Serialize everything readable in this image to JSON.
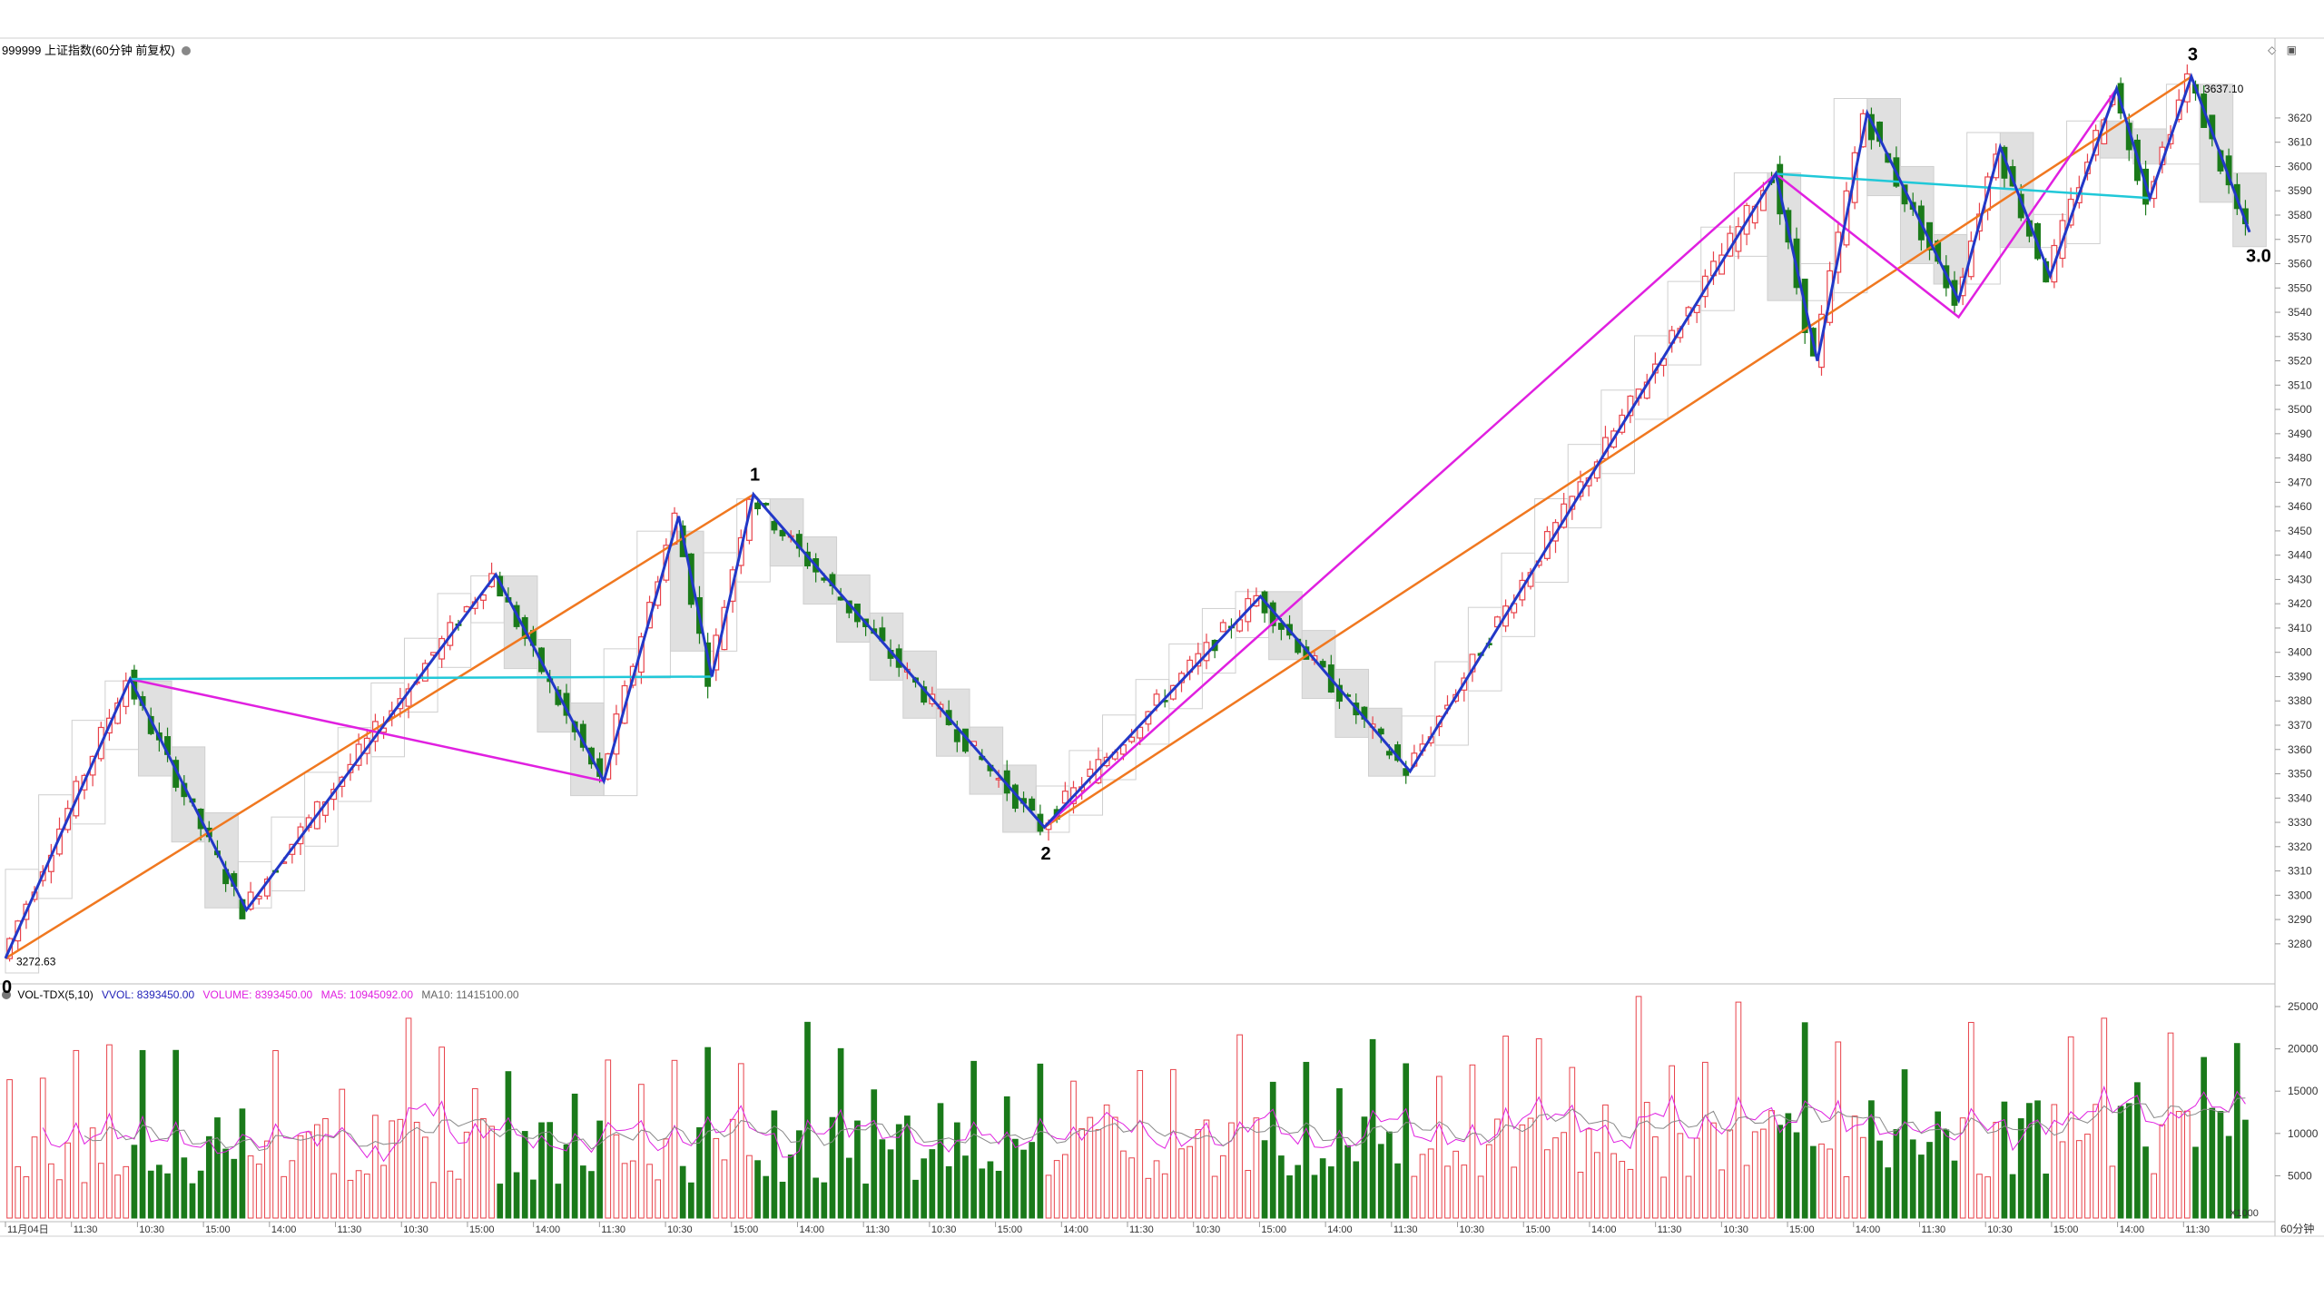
{
  "header": {
    "title": "999999 上证指数(60分钟 前复权)",
    "icons": [
      "diamond-icon",
      "window-icon"
    ]
  },
  "volume_header": {
    "name": "VOL-TDX(5,10)",
    "vvol": "VVOL: 8393450.00",
    "volume": "VOLUME: 8393450.00",
    "ma5": "MA5: 10945092.00",
    "ma10": "MA10: 11415100.00",
    "vvol_color": "#1f1fb8",
    "volume_color": "#e020e0",
    "ma5_color": "#e020e0",
    "ma10_color": "#666666"
  },
  "labels": {
    "wave0": "0",
    "wave1": "1",
    "wave2": "2",
    "wave3": "3",
    "wave3_0": "3.0",
    "low_value": "3272.63",
    "high_value": "3637.10",
    "unit_badge": "X1000",
    "period": "60分钟"
  },
  "colors": {
    "up": "#e8424a",
    "down": "#1a7a1a",
    "wave": "#2238c8",
    "channel": "#f07820",
    "fib": "#e020e0",
    "flat": "#20c8d8",
    "box": "#d0d0d0"
  },
  "chart_data": {
    "type": "candlestick",
    "ylim": [
      3265,
      3648
    ],
    "price_ticks": [
      3280,
      3290,
      3300,
      3310,
      3320,
      3330,
      3340,
      3350,
      3360,
      3370,
      3380,
      3390,
      3400,
      3410,
      3420,
      3430,
      3440,
      3450,
      3460,
      3470,
      3480,
      3490,
      3500,
      3510,
      3520,
      3530,
      3540,
      3550,
      3560,
      3570,
      3580,
      3590,
      3600,
      3610,
      3620
    ],
    "volume_ticks": [
      5000,
      10000,
      15000,
      20000,
      25000
    ],
    "volume_ylim": [
      0,
      26500
    ],
    "x_labels": [
      "11月04日",
      "11:30",
      "10:30",
      "15:00",
      "14:00",
      "11:30",
      "10:30",
      "15:00",
      "14:00",
      "11:30",
      "10:30",
      "15:00",
      "14:00",
      "11:30",
      "10:30",
      "15:00",
      "14:00",
      "11:30",
      "10:30",
      "15:00",
      "14:00",
      "11:30",
      "10:30",
      "15:00",
      "14:00",
      "11:30",
      "10:30",
      "15:00",
      "14:00",
      "11:30",
      "10:30",
      "15:00",
      "14:00",
      "11:30"
    ],
    "low": 3272.63,
    "high": 3637.1,
    "candle_count": 270,
    "wave_points": [
      {
        "i": 0,
        "p": 3274
      },
      {
        "i": 15,
        "p": 3389
      },
      {
        "i": 29,
        "p": 3294
      },
      {
        "i": 59,
        "p": 3432
      },
      {
        "i": 72,
        "p": 3347
      },
      {
        "i": 81,
        "p": 3456
      },
      {
        "i": 85,
        "p": 3390
      },
      {
        "i": 90,
        "p": 3465
      },
      {
        "i": 125,
        "p": 3328
      },
      {
        "i": 151,
        "p": 3423
      },
      {
        "i": 169,
        "p": 3351
      },
      {
        "i": 213,
        "p": 3597
      },
      {
        "i": 218,
        "p": 3520
      },
      {
        "i": 224,
        "p": 3622
      },
      {
        "i": 235,
        "p": 3545
      },
      {
        "i": 240,
        "p": 3608
      },
      {
        "i": 246,
        "p": 3555
      },
      {
        "i": 254,
        "p": 3632
      },
      {
        "i": 258,
        "p": 3587
      },
      {
        "i": 263,
        "p": 3637
      },
      {
        "i": 270,
        "p": 3573
      }
    ],
    "channel_lines": [
      [
        {
          "i": 0,
          "p": 3274
        },
        {
          "i": 90,
          "p": 3465
        }
      ],
      [
        {
          "i": 125,
          "p": 3328
        },
        {
          "i": 263,
          "p": 3637
        }
      ]
    ],
    "fib_lines": [
      [
        {
          "i": 15,
          "p": 3389
        },
        {
          "i": 72,
          "p": 3347
        }
      ],
      [
        {
          "i": 125,
          "p": 3328
        },
        {
          "i": 213,
          "p": 3597
        },
        {
          "i": 235,
          "p": 3538
        },
        {
          "i": 254,
          "p": 3632
        }
      ]
    ],
    "flat_lines": [
      [
        {
          "i": 15,
          "p": 3389
        },
        {
          "i": 85,
          "p": 3390
        }
      ],
      [
        {
          "i": 213,
          "p": 3597
        },
        {
          "i": 258,
          "p": 3587
        }
      ]
    ],
    "markers": [
      {
        "label": "wave0",
        "i": 0,
        "p": 3262
      },
      {
        "label": "wave1",
        "i": 90,
        "p": 3473
      },
      {
        "label": "wave2",
        "i": 125,
        "p": 3317
      },
      {
        "label": "wave3",
        "i": 263,
        "p": 3646
      },
      {
        "label": "wave3_0",
        "i": 270,
        "p": 3563
      }
    ]
  }
}
